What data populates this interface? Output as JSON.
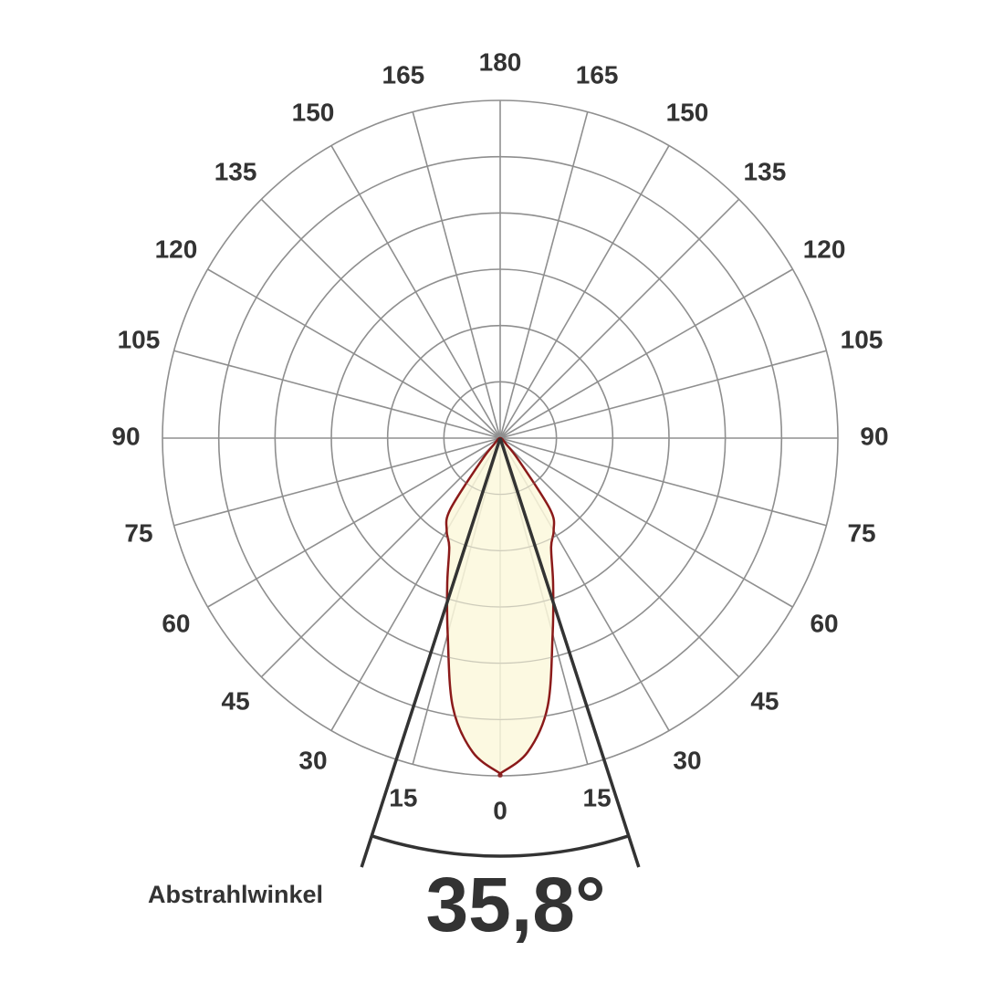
{
  "chart_data": {
    "type": "polar",
    "angle_ticks": [
      0,
      15,
      30,
      45,
      60,
      75,
      90,
      105,
      120,
      135,
      150,
      165,
      180
    ],
    "spoke_step": 15,
    "rlim": [
      0,
      6
    ],
    "rgrid": [
      1,
      2,
      3,
      4,
      5,
      6
    ],
    "grid_color": "#8f8f8f",
    "series": [
      {
        "angles": [
          0,
          5,
          10,
          15,
          20,
          25,
          30,
          35,
          40,
          45,
          60,
          75,
          90
        ],
        "values": [
          5.96,
          5.6,
          4.85,
          3.6,
          2.75,
          2.14,
          1.9,
          1.55,
          0.5,
          0.15,
          0.05,
          0.02,
          0
        ],
        "color": "#8b1a1a",
        "fill": "#fbf8dc"
      }
    ],
    "beam_angle": 35.8,
    "beam_angle_label": "35,8°",
    "beam_angle_title": "Abstrahlwinkel",
    "beam_color": "#333333"
  }
}
